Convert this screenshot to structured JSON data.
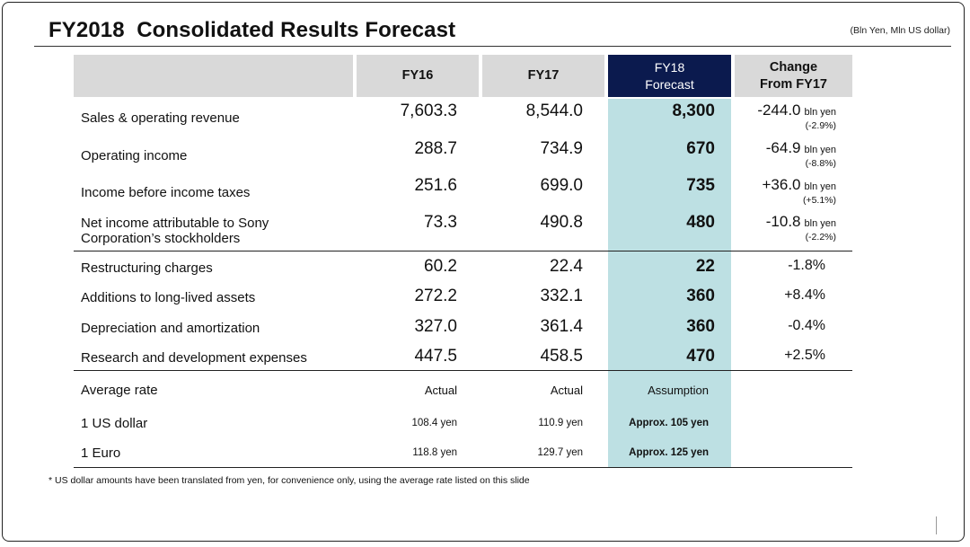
{
  "page": {
    "title": "FY2018  Consolidated Results Forecast",
    "units": "(Bln Yen, Mln US dollar)",
    "footnote": "* US dollar amounts have been translated from yen, for convenience only, using the average rate listed on this slide"
  },
  "colors": {
    "header_gray": "#d9d9d9",
    "forecast_navy": "#0b1a4e",
    "forecast_highlight": "#bde0e3"
  },
  "header": {
    "fy16": "FY16",
    "fy17": "FY17",
    "fy18": "FY18\nForecast",
    "change": "Change\nFrom FY17"
  },
  "main_rows": [
    {
      "label": "Sales & operating revenue",
      "fy16": "7,603.3",
      "fy17": "8,544.0",
      "fy18": "8,300",
      "change": "-244.0",
      "unit": "bln yen",
      "pct": "(-2.9%)"
    },
    {
      "label": "Operating income",
      "fy16": "288.7",
      "fy17": "734.9",
      "fy18": "670",
      "change": "-64.9",
      "unit": "bln yen",
      "pct": "(-8.8%)"
    },
    {
      "label": "Income before income taxes",
      "fy16": "251.6",
      "fy17": "699.0",
      "fy18": "735",
      "change": "+36.0",
      "unit": "bln yen",
      "pct": "(+5.1%)"
    },
    {
      "label": "Net income attributable to Sony Corporation’s stockholders",
      "fy16": "73.3",
      "fy17": "490.8",
      "fy18": "480",
      "change": "-10.8",
      "unit": "bln yen",
      "pct": "(-2.2%)"
    }
  ],
  "other_rows": [
    {
      "label": "Restructuring charges",
      "fy16": "60.2",
      "fy17": "22.4",
      "fy18": "22",
      "change": "-1.8%"
    },
    {
      "label": "Additions to long-lived assets",
      "fy16": "272.2",
      "fy17": "332.1",
      "fy18": "360",
      "change": "+8.4%"
    },
    {
      "label": "Depreciation and amortization",
      "fy16": "327.0",
      "fy17": "361.4",
      "fy18": "360",
      "change": "-0.4%"
    },
    {
      "label": "Research and development expenses",
      "fy16": "447.5",
      "fy17": "458.5",
      "fy18": "470",
      "change": "+2.5%"
    }
  ],
  "rates": {
    "header": {
      "label": "Average rate",
      "fy16": "Actual",
      "fy17": "Actual",
      "fy18": "Assumption"
    },
    "rows": [
      {
        "label": "1 US dollar",
        "fy16": "108.4 yen",
        "fy17": "110.9 yen",
        "fy18": "Approx. 105 yen"
      },
      {
        "label": "1 Euro",
        "fy16": "118.8 yen",
        "fy17": "129.7 yen",
        "fy18": "Approx. 125 yen"
      }
    ]
  }
}
